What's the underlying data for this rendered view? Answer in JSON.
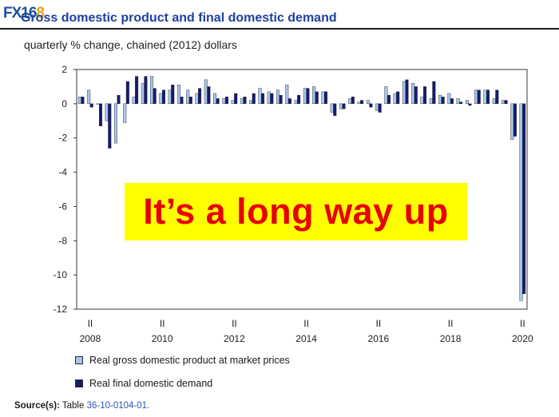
{
  "logo": {
    "main": "FX16",
    "accent": "8"
  },
  "title": "Gross domestic product and final domestic demand",
  "subtitle": "quarterly % change, chained (2012) dollars",
  "banner": "It’s a long way up",
  "legend": {
    "gdp": "Real gross domestic product at market prices",
    "fdd": "Real final domestic demand"
  },
  "source": {
    "label": "Source(s):",
    "text": "Table",
    "ref": "36-10-0104-01."
  },
  "colors": {
    "gdp": "#a9c6ea",
    "fdd": "#151c6d",
    "axis": "#3a3a3a",
    "banner_bg": "#ffff00",
    "banner_text": "#e60000"
  },
  "chart_data": {
    "type": "bar",
    "ylim": [
      -12,
      2
    ],
    "yticks": [
      2,
      0,
      -2,
      -4,
      -6,
      -8,
      -10,
      -12
    ],
    "quarter_labels": [
      "II",
      "II",
      "II",
      "II",
      "II",
      "II",
      "II"
    ],
    "year_labels": [
      "2008",
      "2010",
      "2012",
      "2014",
      "2016",
      "2018",
      "2020"
    ],
    "categories": [
      "2008Q1",
      "2008Q2",
      "2008Q3",
      "2008Q4",
      "2009Q1",
      "2009Q2",
      "2009Q3",
      "2009Q4",
      "2010Q1",
      "2010Q2",
      "2010Q3",
      "2010Q4",
      "2011Q1",
      "2011Q2",
      "2011Q3",
      "2011Q4",
      "2012Q1",
      "2012Q2",
      "2012Q3",
      "2012Q4",
      "2013Q1",
      "2013Q2",
      "2013Q3",
      "2013Q4",
      "2014Q1",
      "2014Q2",
      "2014Q3",
      "2014Q4",
      "2015Q1",
      "2015Q2",
      "2015Q3",
      "2015Q4",
      "2016Q1",
      "2016Q2",
      "2016Q3",
      "2016Q4",
      "2017Q1",
      "2017Q2",
      "2017Q3",
      "2017Q4",
      "2018Q1",
      "2018Q2",
      "2018Q3",
      "2018Q4",
      "2019Q1",
      "2019Q2",
      "2019Q3",
      "2019Q4",
      "2020Q1",
      "2020Q2"
    ],
    "series": [
      {
        "name": "Real gross domestic product at market prices",
        "values": [
          0.4,
          0.8,
          0.0,
          -1.0,
          -2.3,
          -1.1,
          0.4,
          1.2,
          1.6,
          0.6,
          0.8,
          1.1,
          0.8,
          0.6,
          1.4,
          0.6,
          0.3,
          0.2,
          0.3,
          0.2,
          0.9,
          0.7,
          0.8,
          1.1,
          0.2,
          0.9,
          1.0,
          0.7,
          -0.5,
          -0.3,
          0.3,
          0.1,
          0.2,
          -0.4,
          1.0,
          0.6,
          1.3,
          1.2,
          0.4,
          0.3,
          0.5,
          0.6,
          0.3,
          0.2,
          0.8,
          0.8,
          0.3,
          0.2,
          -2.1,
          -11.5
        ]
      },
      {
        "name": "Real final domestic demand",
        "values": [
          0.4,
          -0.2,
          -1.3,
          -2.6,
          0.5,
          1.3,
          1.6,
          1.6,
          0.9,
          0.8,
          1.1,
          0.4,
          0.4,
          0.9,
          1.0,
          0.3,
          0.4,
          0.6,
          0.4,
          0.6,
          0.6,
          0.6,
          0.5,
          0.3,
          0.5,
          0.9,
          0.7,
          0.7,
          -0.7,
          -0.3,
          0.4,
          0.2,
          -0.2,
          -0.5,
          0.5,
          0.7,
          1.4,
          1.0,
          1.0,
          1.3,
          0.4,
          0.3,
          0.1,
          -0.1,
          0.8,
          0.8,
          0.8,
          0.2,
          -1.9,
          -11.1
        ]
      }
    ]
  }
}
